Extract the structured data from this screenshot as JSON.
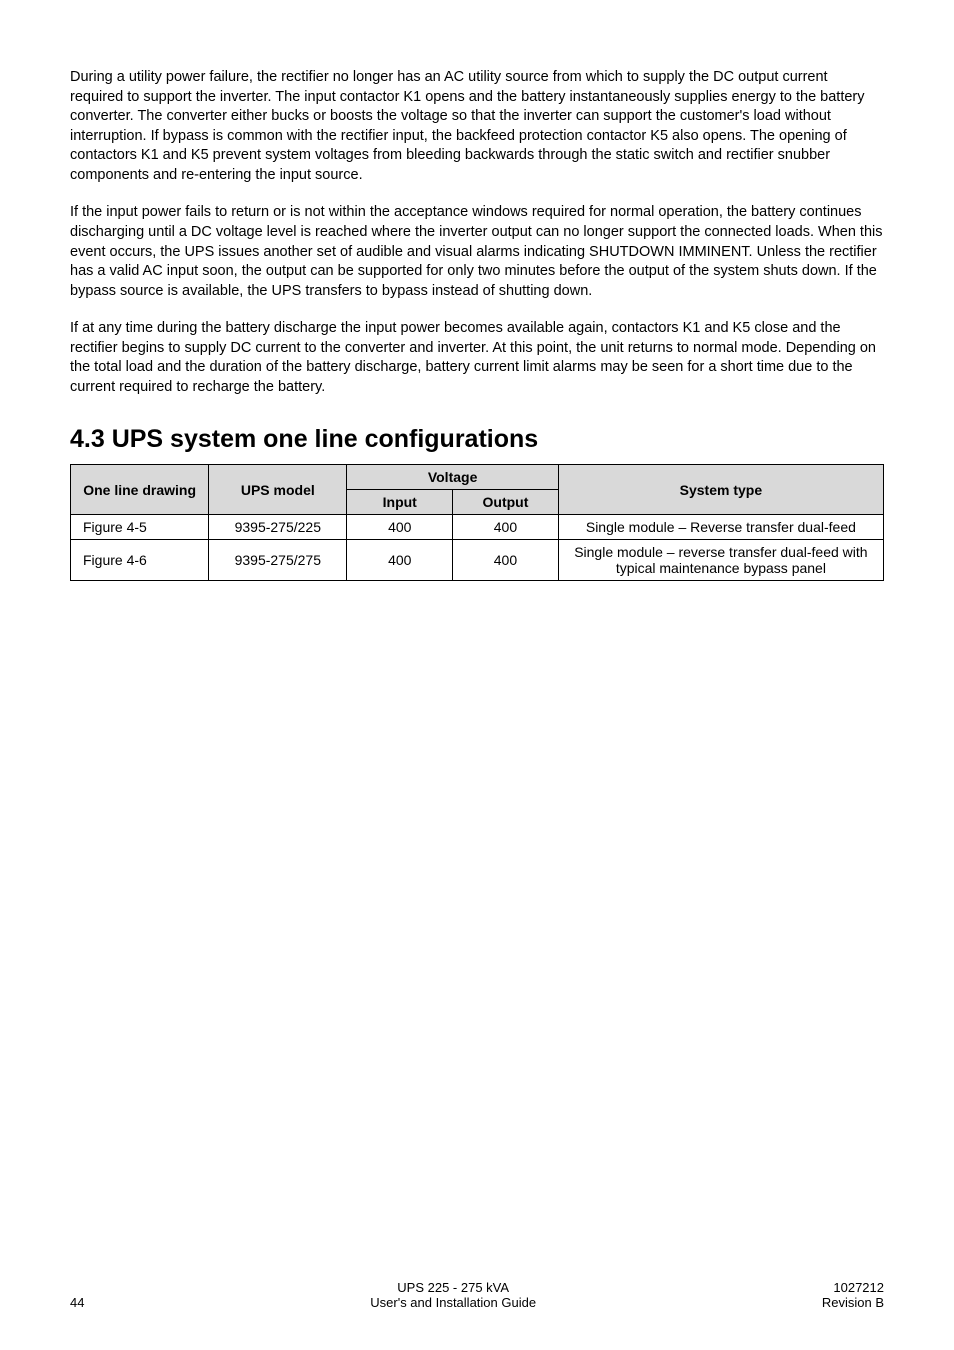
{
  "paragraphs": {
    "p1": "During a utility power failure, the rectifier no longer has an AC utility source from which to supply the DC output current required to support the inverter. The input contactor K1 opens and the battery instantaneously supplies energy to the battery converter. The converter either bucks or boosts the voltage so that the inverter can support the customer's load without interruption. If bypass is common with the rectifier input, the backfeed protection contactor K5 also opens. The opening of contactors K1 and K5 prevent system voltages from bleeding backwards through the static switch and rectifier snubber components and re-entering the input source.",
    "p2": "If the input power fails to return or is not within the acceptance windows required for normal operation, the battery continues discharging until a DC voltage level is reached where the inverter output can no longer support the connected loads. When this event occurs, the UPS issues another set of audible and visual alarms indicating SHUTDOWN IMMINENT. Unless the rectifier has a valid AC input soon, the output can be supported for only two minutes before the output of the system shuts down. If the bypass source is available, the UPS transfers to bypass instead of shutting down.",
    "p3": "If at any time during the battery discharge the input power becomes available again, contactors K1 and K5 close and the rectifier begins to supply DC current to the converter and inverter. At this point, the unit returns to normal mode. Depending on the total load and the duration of the battery discharge, battery current limit alarms may be seen for a short time due to the current required to recharge the battery."
  },
  "section_heading": "4.3 UPS system one line configurations",
  "table": {
    "headers": {
      "one_line": "One line drawing",
      "ups_model": "UPS model",
      "voltage": "Voltage",
      "input": "Input",
      "output": "Output",
      "system_type": "System type"
    },
    "rows": [
      {
        "one_line": "Figure 4-5",
        "ups_model": "9395-275/225",
        "input": "400",
        "output": "400",
        "system_type": "Single module – Reverse transfer dual-feed"
      },
      {
        "one_line": "Figure 4-6",
        "ups_model": "9395-275/275",
        "input": "400",
        "output": "400",
        "system_type": "Single module – reverse transfer dual-feed with typical maintenance bypass panel"
      }
    ],
    "col_widths": {
      "one_line": "17%",
      "ups_model": "17%",
      "input": "13%",
      "output": "13%",
      "system_type": "40%"
    }
  },
  "footer": {
    "page_number": "44",
    "center_line1": "UPS 225 - 275 kVA",
    "center_line2": "User's and Installation Guide",
    "right_line1": "1027212",
    "right_line2": "Revision B"
  }
}
